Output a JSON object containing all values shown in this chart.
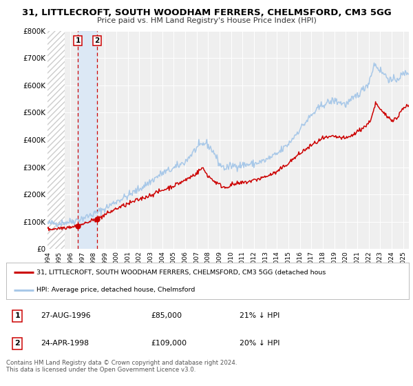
{
  "title_line1": "31, LITTLECROFT, SOUTH WOODHAM FERRERS, CHELMSFORD, CM3 5GG",
  "title_line2": "Price paid vs. HM Land Registry's House Price Index (HPI)",
  "ylim": [
    0,
    800000
  ],
  "yticks": [
    0,
    100000,
    200000,
    300000,
    400000,
    500000,
    600000,
    700000,
    800000
  ],
  "ytick_labels": [
    "£0",
    "£100K",
    "£200K",
    "£300K",
    "£400K",
    "£500K",
    "£600K",
    "£700K",
    "£800K"
  ],
  "hpi_color": "#a8c8e8",
  "price_color": "#cc0000",
  "sale1_date_num": 1996.653,
  "sale1_price": 85000,
  "sale2_date_num": 1998.31,
  "sale2_price": 109000,
  "shade_color": "#dce8f5",
  "vline_color": "#cc0000",
  "hatch_color": "#cccccc",
  "legend_label1": "31, LITTLECROFT, SOUTH WOODHAM FERRERS, CHELMSFORD, CM3 5GG (detached hous",
  "legend_label2": "HPI: Average price, detached house, Chelmsford",
  "table_row1": [
    "1",
    "27-AUG-1996",
    "£85,000",
    "21% ↓ HPI"
  ],
  "table_row2": [
    "2",
    "24-APR-1998",
    "£109,000",
    "20% ↓ HPI"
  ],
  "footer1": "Contains HM Land Registry data © Crown copyright and database right 2024.",
  "footer2": "This data is licensed under the Open Government Licence v3.0.",
  "background_color": "#ffffff",
  "plot_bg_color": "#efefef",
  "xlim_left": 1994.0,
  "xlim_right": 2025.5,
  "hatch_end": 1995.5
}
